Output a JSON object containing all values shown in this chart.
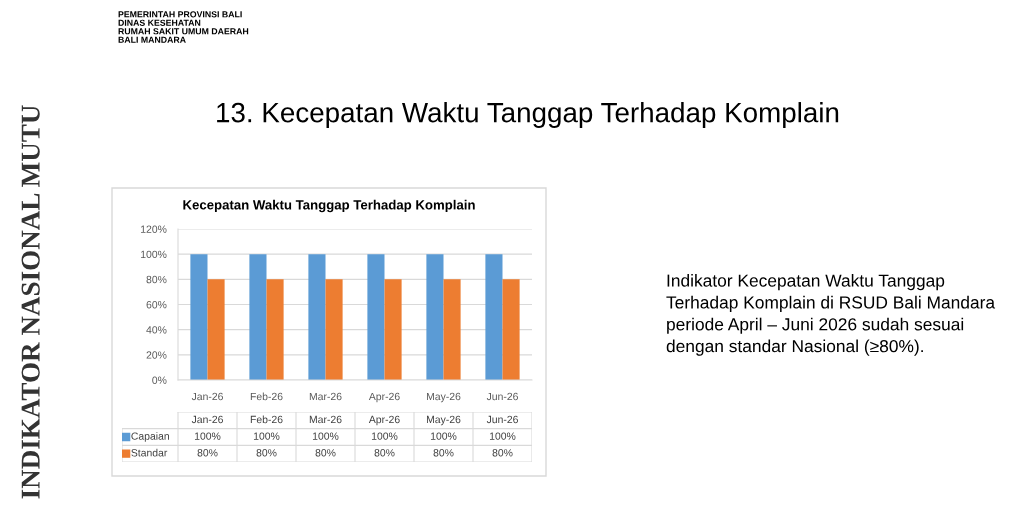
{
  "chart_data": {
    "type": "bar",
    "title": "Kecepatan Waktu Tanggap Terhadap Komplain",
    "categories": [
      "Jan-26",
      "Feb-26",
      "Mar-26",
      "Apr-26",
      "May-26",
      "Jun-26"
    ],
    "series": [
      {
        "name": "Capaian",
        "color": "#5b9bd5",
        "values": [
          100,
          100,
          100,
          100,
          100,
          100
        ],
        "value_labels": [
          "100%",
          "100%",
          "100%",
          "100%",
          "100%",
          "100%"
        ]
      },
      {
        "name": "Standar",
        "color": "#ed7d31",
        "values": [
          80,
          80,
          80,
          80,
          80,
          80
        ],
        "value_labels": [
          "80%",
          "80%",
          "80%",
          "80%",
          "80%",
          "80%"
        ]
      }
    ],
    "ylim": [
      0,
      120
    ],
    "yticks": [
      {
        "value": 0,
        "label": "0%"
      },
      {
        "value": 20,
        "label": "20%"
      },
      {
        "value": 40,
        "label": "40%"
      },
      {
        "value": 60,
        "label": "60%"
      },
      {
        "value": 80,
        "label": "80%"
      },
      {
        "value": 100,
        "label": "100%"
      },
      {
        "value": 120,
        "label": "120%"
      }
    ],
    "grid": "y",
    "legend": "bottom left",
    "annotations": [
      "PEMERINTAH PROVINSI BALI\nDINAS KESEHATAN\nRUMAH SAKIT UMUM DAERAH\nBALI MANDARA",
      "13. Kecepatan Waktu Tanggap Terhadap Komplain",
      "Indikator Kecepatan Waktu Tanggap\nTerhadap Komplain di RSUD Bali Mandara\nperiode April – Juni 2026 sudah sesuai\ndengan standar Nasional (≥80%).",
      "INDIKATOR NASIONAL MUTU"
    ]
  }
}
